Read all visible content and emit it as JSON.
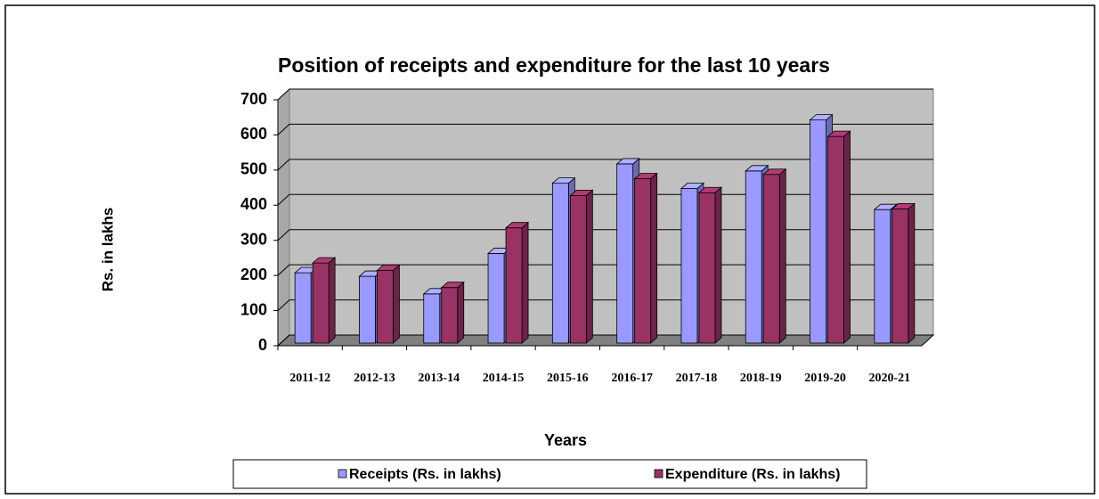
{
  "chart_data": {
    "type": "bar3d",
    "title": "Position of receipts and expenditure for the last 10 years",
    "x_label": "Years",
    "y_label": "Rs. in lakhs",
    "categories": [
      "2011-12",
      "2012-13",
      "2013-14",
      "2014-15",
      "2015-16",
      "2016-17",
      "2017-18",
      "2018-19",
      "2019-20",
      "2020-21"
    ],
    "series": [
      {
        "name": "Receipts (Rs. in lakhs)",
        "color": "#9999ff",
        "values": [
          200,
          190,
          140,
          255,
          455,
          510,
          440,
          490,
          635,
          380
        ]
      },
      {
        "name": "Expenditure (Rs. in lakhs)",
        "color": "#993366",
        "values": [
          228,
          207,
          158,
          328,
          420,
          468,
          428,
          480,
          588,
          382
        ]
      }
    ],
    "ylim": [
      0,
      700
    ],
    "yticks": [
      0,
      100,
      200,
      300,
      400,
      500,
      600,
      700
    ],
    "grid": true,
    "legend": "bottom"
  }
}
